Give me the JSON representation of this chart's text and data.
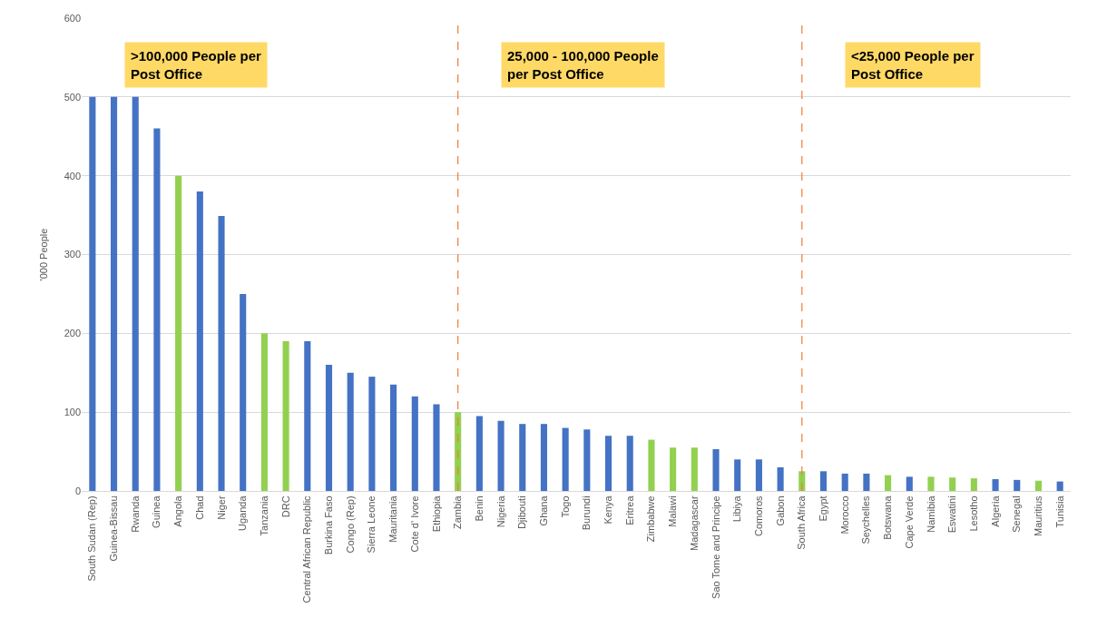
{
  "chart_data": {
    "type": "bar",
    "ylabel": "'000 People",
    "categories": [
      "South Sudan (Rep)",
      "Guinea-Bissau",
      "Rwanda",
      "Guinea",
      "Angola",
      "Chad",
      "Niger",
      "Uganda",
      "Tanzania",
      "DRC",
      "Central African Republic",
      "Burkina Faso",
      "Congo (Rep)",
      "Sierra Leone",
      "Mauritania",
      "Cote d' Ivore",
      "Ethiopia",
      "Zambia",
      "Benin",
      "Nigeria",
      "Djibouti",
      "Ghana",
      "Togo",
      "Burundi",
      "Kenya",
      "Eritrea",
      "Zimbabwe",
      "Malawi",
      "Madagascar",
      "Sao Tome and Principe",
      "Libiya",
      "Comoros",
      "Gabon",
      "South Africa",
      "Egypt",
      "Morocco",
      "Seychelles",
      "Botswana",
      "Cape Verde",
      "Namibia",
      "Eswatini",
      "Lesotho",
      "Algeria",
      "Senegal",
      "Mauritius",
      "Tunisia"
    ],
    "values": [
      500,
      500,
      500,
      460,
      400,
      380,
      349,
      250,
      200,
      190,
      190,
      160,
      150,
      145,
      135,
      120,
      110,
      100,
      95,
      89,
      85,
      85,
      80,
      78,
      70,
      70,
      65,
      55,
      55,
      53,
      40,
      40,
      30,
      25,
      25,
      22,
      22,
      20,
      18,
      18,
      17,
      16,
      15,
      14,
      13,
      12
    ],
    "colors": [
      "#4472c4",
      "#4472c4",
      "#4472c4",
      "#4472c4",
      "#92d050",
      "#4472c4",
      "#4472c4",
      "#4472c4",
      "#92d050",
      "#92d050",
      "#4472c4",
      "#4472c4",
      "#4472c4",
      "#4472c4",
      "#4472c4",
      "#4472c4",
      "#4472c4",
      "#92d050",
      "#4472c4",
      "#4472c4",
      "#4472c4",
      "#4472c4",
      "#4472c4",
      "#4472c4",
      "#4472c4",
      "#4472c4",
      "#92d050",
      "#92d050",
      "#92d050",
      "#4472c4",
      "#4472c4",
      "#4472c4",
      "#4472c4",
      "#92d050",
      "#4472c4",
      "#4472c4",
      "#4472c4",
      "#92d050",
      "#4472c4",
      "#92d050",
      "#92d050",
      "#92d050",
      "#4472c4",
      "#4472c4",
      "#92d050",
      "#4472c4"
    ],
    "ylim": [
      0,
      600
    ],
    "yticks": [
      0,
      100,
      200,
      300,
      400,
      500,
      600
    ],
    "grid": "y",
    "ref_lines": [
      {
        "axis": "x",
        "value": "Zambia",
        "color": "#ed7d31",
        "line_style": "dashed"
      },
      {
        "axis": "x",
        "value": "South Africa",
        "color": "#ed7d31",
        "line_style": "dashed"
      }
    ],
    "annotations": [
      ">100,000 People per Post Office",
      "25,000 - 100,000 People per Post Office",
      "<25,000 People per Post Office"
    ]
  }
}
